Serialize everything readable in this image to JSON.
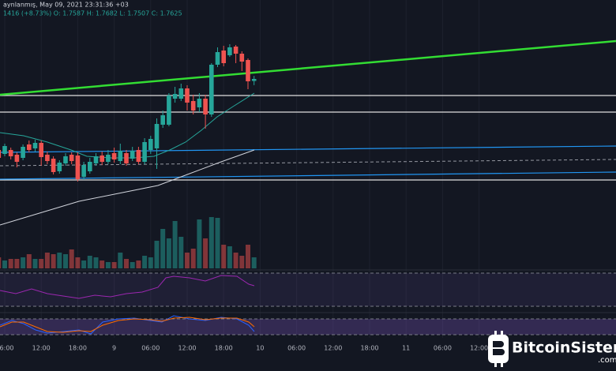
{
  "chart_data": {
    "type": "candlestick",
    "header": "aynlanmış, May 09, 2021 23:31:36 +03",
    "ohlc_text": "1416 (+8.73%) O: 1.7587 H: 1.7682 L: 1.7507 C: 1.7625",
    "watermark": "BitcoinSistemi",
    "watermark_suffix": ".com",
    "up_color": "#26a69a",
    "down_color": "#ef5350",
    "ylim": [
      1.4025,
      1.9125
    ],
    "volume_ylim": [
      0,
      100
    ],
    "x_labels": [
      "06:00",
      "12:00",
      "18:00",
      "9",
      "06:00",
      "12:00",
      "18:00",
      "10",
      "06:00",
      "12:00",
      "18:00",
      "11",
      "06:00",
      "12:00"
    ],
    "grid": true,
    "open": [
      1.6275,
      1.62,
      1.6275,
      1.6185,
      1.6125,
      1.638,
      1.6305,
      1.641,
      1.6185,
      1.611,
      1.587,
      1.602,
      1.6185,
      1.617,
      1.5765,
      1.587,
      1.602,
      1.617,
      1.605,
      1.6215,
      1.6065,
      1.6215,
      1.611,
      1.6275,
      1.605,
      1.6275,
      1.6305,
      1.6755,
      1.6755,
      1.725,
      1.725,
      1.7445,
      1.7205,
      1.7085,
      1.725,
      1.695,
      1.7895,
      1.8165,
      1.8075,
      1.824,
      1.8105,
      1.7985,
      1.7587
    ],
    "high": [
      1.6335,
      1.6395,
      1.632,
      1.623,
      1.638,
      1.6455,
      1.647,
      1.6455,
      1.6245,
      1.6155,
      1.608,
      1.6215,
      1.623,
      1.623,
      1.605,
      1.6125,
      1.6215,
      1.6245,
      1.6275,
      1.632,
      1.6395,
      1.6275,
      1.6335,
      1.6335,
      1.65,
      1.6545,
      1.6875,
      1.7025,
      1.7355,
      1.7475,
      1.7535,
      1.7505,
      1.7325,
      1.7355,
      1.7325,
      1.7925,
      1.8225,
      1.8255,
      1.8285,
      1.827,
      1.815,
      1.8015,
      1.7682
    ],
    "low": [
      1.608,
      1.6155,
      1.6095,
      1.5945,
      1.608,
      1.623,
      1.6245,
      1.5975,
      1.6005,
      1.581,
      1.5825,
      1.5975,
      1.6005,
      1.5675,
      1.5705,
      1.5825,
      1.5975,
      1.599,
      1.6005,
      1.6035,
      1.6005,
      1.5975,
      1.6065,
      1.6005,
      1.6005,
      1.62,
      1.5915,
      1.6695,
      1.6725,
      1.7175,
      1.7205,
      1.7025,
      1.695,
      1.6995,
      1.668,
      1.6905,
      1.785,
      1.7865,
      1.8045,
      1.7925,
      1.7775,
      1.743,
      1.7507
    ],
    "close": [
      1.6125,
      1.635,
      1.6155,
      1.605,
      1.6335,
      1.6275,
      1.641,
      1.614,
      1.6065,
      1.5855,
      1.6035,
      1.6155,
      1.6065,
      1.572,
      1.599,
      1.605,
      1.6155,
      1.605,
      1.6185,
      1.6095,
      1.626,
      1.602,
      1.626,
      1.605,
      1.6425,
      1.6485,
      1.677,
      1.6935,
      1.731,
      1.734,
      1.7445,
      1.7175,
      1.7025,
      1.725,
      1.695,
      1.7895,
      1.8135,
      1.7925,
      1.8225,
      1.8105,
      1.7955,
      1.758,
      1.7625
    ],
    "volume": [
      14,
      10,
      12,
      12,
      14,
      18,
      12,
      12,
      20,
      18,
      20,
      18,
      24,
      14,
      10,
      16,
      14,
      10,
      8,
      8,
      20,
      12,
      8,
      10,
      16,
      14,
      35,
      50,
      38,
      60,
      40,
      20,
      25,
      62,
      38,
      65,
      64,
      30,
      28,
      20,
      16,
      30,
      14
    ]
  }
}
